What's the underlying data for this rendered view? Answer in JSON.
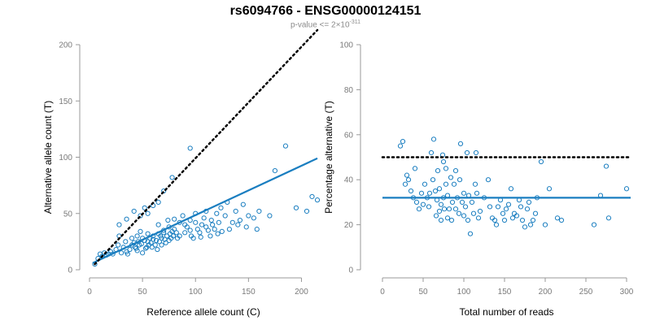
{
  "title": "rs6094766 - ENSG00000124151",
  "subtitle": {
    "prefix": "p-value <= 2×10",
    "exponent": "-311"
  },
  "chart_data": [
    {
      "type": "scatter",
      "xlabel": "Reference allele count (C)",
      "ylabel": "Alternative allele count (T)",
      "xlim": [
        0,
        215
      ],
      "ylim": [
        0,
        200
      ],
      "xticks": [
        "0",
        "50",
        "100",
        "150",
        "200"
      ],
      "yticks": [
        "0",
        "50",
        "100",
        "150",
        "200"
      ],
      "xtick_values": [
        0,
        50,
        100,
        150,
        200
      ],
      "ytick_values": [
        0,
        50,
        100,
        150,
        200
      ],
      "grid": false,
      "point_color": "#1a7ec0",
      "series": [
        {
          "type": "points",
          "x": [
            5,
            8,
            10,
            12,
            14,
            16,
            18,
            20,
            22,
            25,
            27,
            28,
            30,
            32,
            34,
            35,
            36,
            38,
            40,
            40,
            42,
            43,
            44,
            45,
            45,
            46,
            47,
            48,
            49,
            50,
            50,
            52,
            53,
            54,
            55,
            55,
            56,
            57,
            58,
            59,
            60,
            60,
            62,
            63,
            64,
            65,
            65,
            66,
            67,
            68,
            68,
            70,
            70,
            71,
            72,
            73,
            74,
            75,
            75,
            76,
            77,
            78,
            79,
            80,
            80,
            82,
            83,
            85,
            85,
            88,
            90,
            90,
            92,
            95,
            95,
            96,
            98,
            100,
            100,
            102,
            104,
            105,
            106,
            108,
            110,
            110,
            112,
            114,
            115,
            116,
            118,
            120,
            121,
            122,
            124,
            125,
            128,
            130,
            132,
            135,
            138,
            140,
            142,
            145,
            148,
            150,
            155,
            158,
            160,
            170,
            175,
            185,
            195,
            205,
            210,
            215,
            28,
            35,
            42,
            48,
            52,
            55,
            60,
            65,
            70,
            78,
            95
          ],
          "y": [
            5,
            10,
            14,
            12,
            15,
            13,
            14,
            16,
            14,
            18,
            22,
            30,
            15,
            20,
            25,
            16,
            14,
            18,
            28,
            22,
            24,
            20,
            19,
            17,
            30,
            25,
            22,
            34,
            23,
            15,
            28,
            26,
            19,
            20,
            32,
            25,
            22,
            28,
            24,
            20,
            30,
            27,
            22,
            26,
            18,
            32,
            40,
            25,
            30,
            22,
            28,
            33,
            35,
            27,
            24,
            30,
            44,
            38,
            26,
            32,
            28,
            34,
            30,
            36,
            45,
            33,
            28,
            42,
            30,
            48,
            40,
            33,
            38,
            35,
            44,
            30,
            28,
            42,
            50,
            36,
            33,
            29,
            40,
            46,
            38,
            52,
            35,
            30,
            44,
            40,
            36,
            50,
            32,
            42,
            55,
            34,
            48,
            60,
            36,
            42,
            52,
            40,
            44,
            58,
            38,
            48,
            46,
            36,
            52,
            48,
            88,
            110,
            55,
            52,
            65,
            62,
            40,
            45,
            52,
            48,
            55,
            50,
            57,
            60,
            70,
            82,
            108
          ],
          "marker": "circle-open"
        },
        {
          "type": "fit-line",
          "x": [
            3,
            215
          ],
          "y": [
            6,
            99
          ],
          "style": "solid",
          "color": "#1a7ec0"
        },
        {
          "type": "reference-line",
          "x": [
            5,
            215
          ],
          "y": [
            5,
            213
          ],
          "style": "dotted",
          "color": "#000000"
        }
      ]
    },
    {
      "type": "scatter",
      "xlabel": "Total number of reads",
      "ylabel": "Percentage alternative (T)",
      "xlim": [
        0,
        305
      ],
      "ylim": [
        0,
        100
      ],
      "xticks": [
        "0",
        "50",
        "100",
        "150",
        "200",
        "250",
        "300"
      ],
      "yticks": [
        "0",
        "20",
        "40",
        "60",
        "80",
        "100"
      ],
      "xtick_values": [
        0,
        50,
        100,
        150,
        200,
        250,
        300
      ],
      "ytick_values": [
        0,
        20,
        40,
        60,
        80,
        100
      ],
      "grid": false,
      "point_color": "#1a7ec0",
      "series": [
        {
          "type": "points",
          "x": [
            22,
            25,
            28,
            30,
            32,
            35,
            38,
            40,
            42,
            45,
            48,
            50,
            52,
            55,
            57,
            58,
            60,
            62,
            63,
            65,
            66,
            67,
            68,
            70,
            70,
            72,
            72,
            74,
            75,
            75,
            76,
            78,
            78,
            80,
            80,
            82,
            84,
            85,
            86,
            88,
            90,
            90,
            92,
            94,
            95,
            96,
            98,
            100,
            100,
            102,
            104,
            105,
            106,
            108,
            110,
            112,
            114,
            115,
            116,
            118,
            120,
            125,
            130,
            132,
            135,
            138,
            140,
            142,
            145,
            148,
            150,
            152,
            155,
            158,
            160,
            162,
            165,
            168,
            170,
            172,
            175,
            178,
            180,
            182,
            185,
            188,
            190,
            195,
            200,
            205,
            215,
            220,
            260,
            268,
            275,
            278,
            300
          ],
          "y": [
            55,
            57,
            38,
            42,
            40,
            35,
            32,
            45,
            30,
            27,
            34,
            29,
            38,
            32,
            28,
            34,
            52,
            40,
            58,
            35,
            24,
            31,
            44,
            26,
            36,
            29,
            22,
            51,
            32,
            48,
            27,
            38,
            45,
            23,
            33,
            27,
            41,
            22,
            30,
            38,
            44,
            27,
            32,
            25,
            40,
            56,
            30,
            24,
            34,
            28,
            52,
            22,
            33,
            16,
            30,
            25,
            38,
            52,
            34,
            23,
            26,
            32,
            40,
            28,
            23,
            22,
            20,
            28,
            31,
            25,
            22,
            27,
            29,
            36,
            23,
            25,
            24,
            31,
            28,
            22,
            19,
            27,
            30,
            20,
            22,
            25,
            32,
            48,
            20,
            36,
            23,
            22,
            20,
            33,
            46,
            23,
            36
          ],
          "marker": "circle-open"
        },
        {
          "type": "fit-line",
          "x": [
            0,
            305
          ],
          "y": [
            32,
            32
          ],
          "style": "solid",
          "color": "#1a7ec0"
        },
        {
          "type": "reference-line",
          "x": [
            0,
            305
          ],
          "y": [
            50,
            50
          ],
          "style": "dotted",
          "color": "#000000"
        }
      ]
    }
  ]
}
